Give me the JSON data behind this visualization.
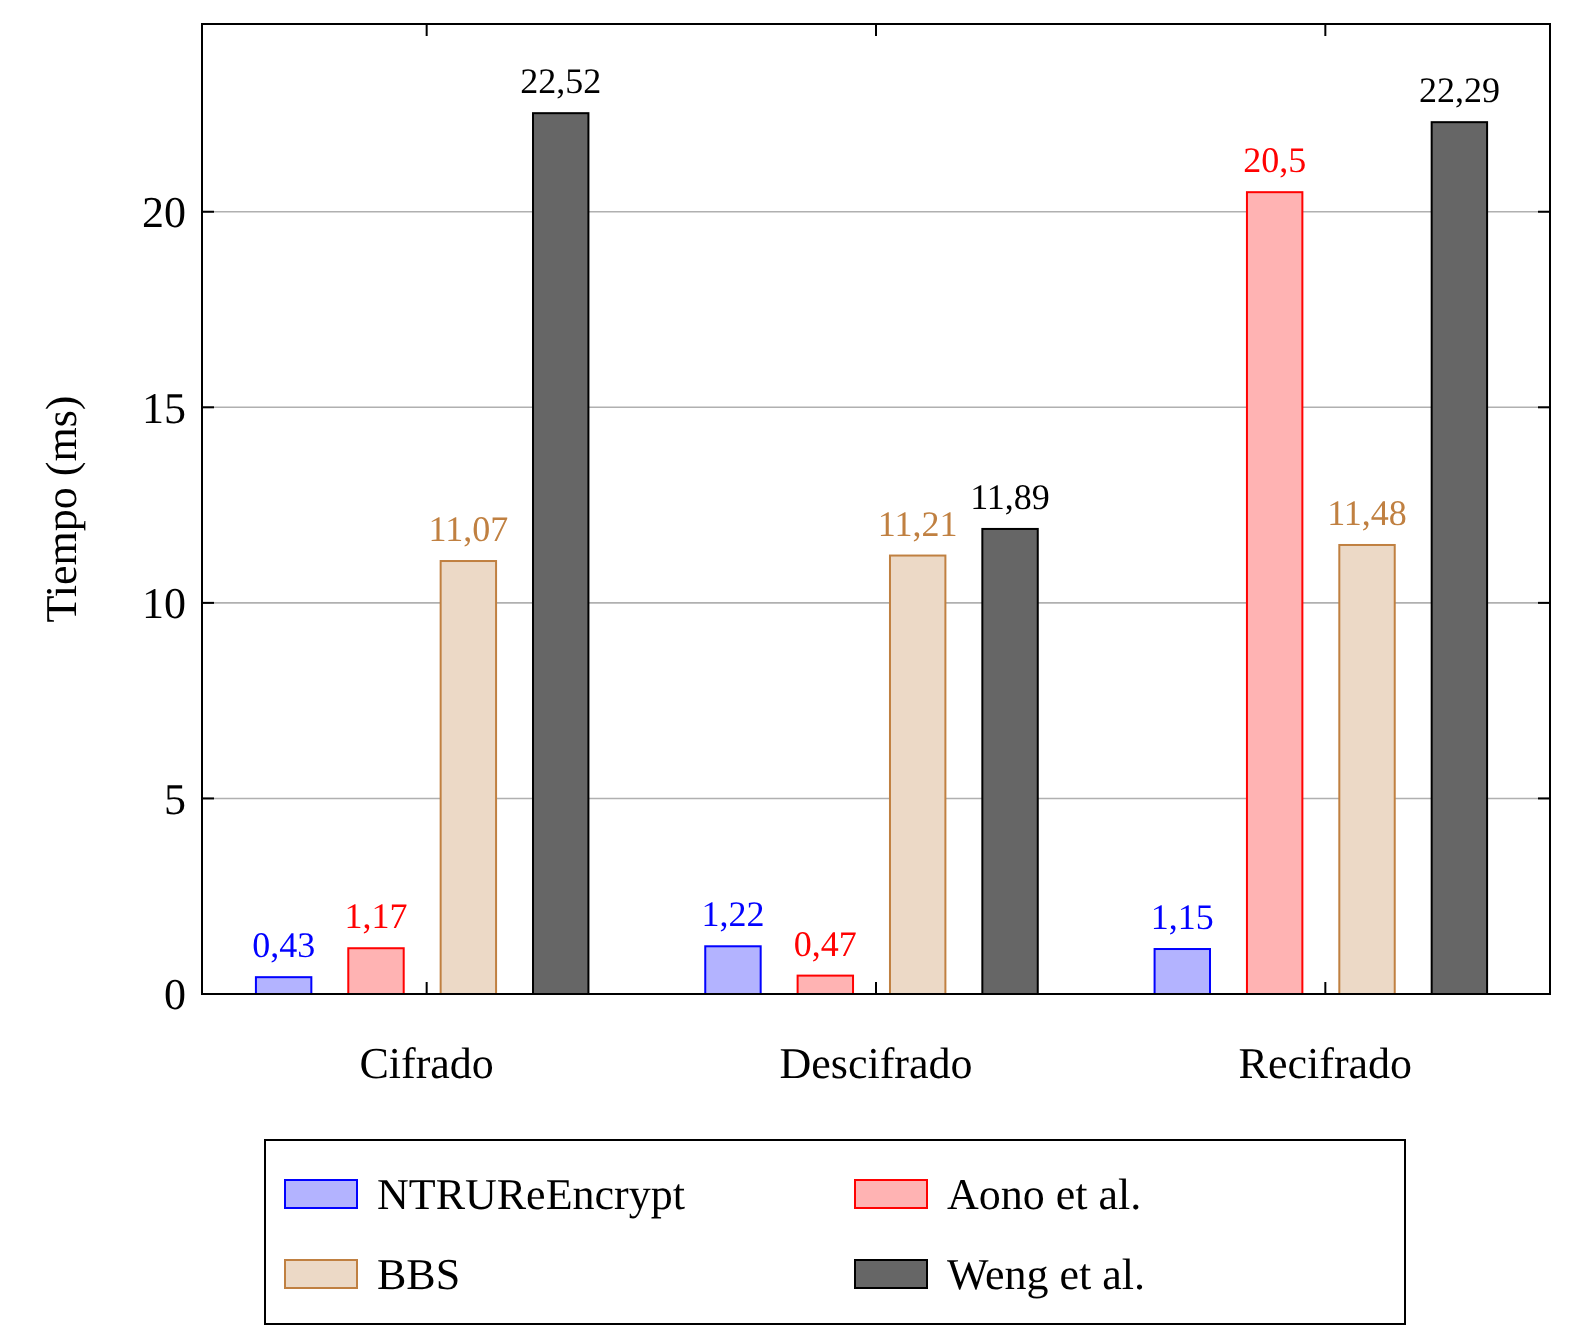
{
  "chart_data": {
    "type": "bar",
    "ylabel": "Tiempo (ms)",
    "categories": [
      "Cifrado",
      "Descifrado",
      "Recifrado"
    ],
    "series": [
      {
        "name": "NTRUReEncrypt",
        "color": "#b3b3ff",
        "values": [
          0.43,
          1.22,
          1.15
        ],
        "value_labels": [
          "0,43",
          "1,22",
          "1,15"
        ]
      },
      {
        "name": "Aono et al.",
        "color": "#ffb3b3",
        "values": [
          1.17,
          0.47,
          20.5
        ],
        "value_labels": [
          "1,17",
          "0,47",
          "20,5"
        ]
      },
      {
        "name": "BBS",
        "color": "#ecd9c6",
        "values": [
          11.07,
          11.21,
          11.48
        ],
        "value_labels": [
          "11,07",
          "11,21",
          "11,48"
        ]
      },
      {
        "name": "Weng et al.",
        "color": "#666666",
        "values": [
          22.52,
          11.89,
          22.29
        ],
        "value_labels": [
          "22,52",
          "11,89",
          "22,29"
        ]
      }
    ],
    "ylim": [
      0,
      24.8
    ],
    "yticks": [
      0,
      5,
      10,
      15,
      20
    ],
    "grid": "y",
    "legend": "bottom"
  }
}
